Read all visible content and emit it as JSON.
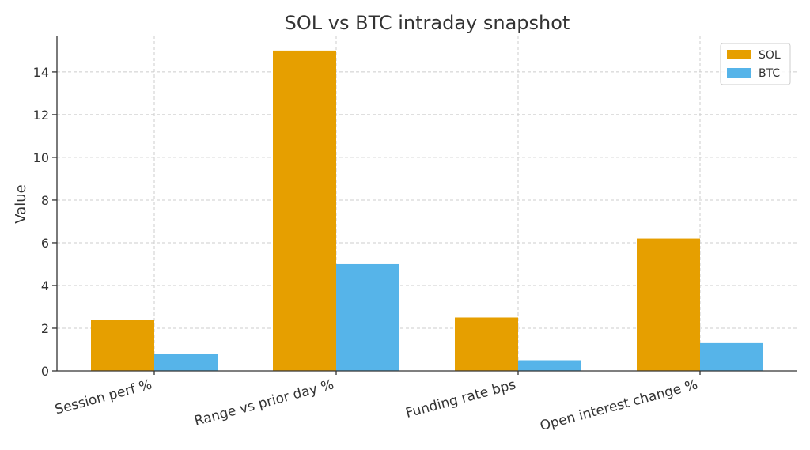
{
  "chart_data": {
    "type": "bar",
    "title": "SOL vs BTC intraday snapshot",
    "xlabel": "",
    "ylabel": "Value",
    "categories": [
      "Session perf %",
      "Range vs prior day %",
      "Funding rate bps",
      "Open interest change %"
    ],
    "series": [
      {
        "name": "SOL",
        "values": [
          2.4,
          15.0,
          2.5,
          6.2
        ],
        "color": "#E69F00"
      },
      {
        "name": "BTC",
        "values": [
          0.8,
          5.0,
          0.5,
          1.3
        ],
        "color": "#56B4E9"
      }
    ],
    "ylim": [
      0,
      15.7
    ],
    "yticks": [
      0,
      2,
      4,
      6,
      8,
      10,
      12,
      14
    ],
    "grid": true,
    "legend_position": "top-right"
  }
}
